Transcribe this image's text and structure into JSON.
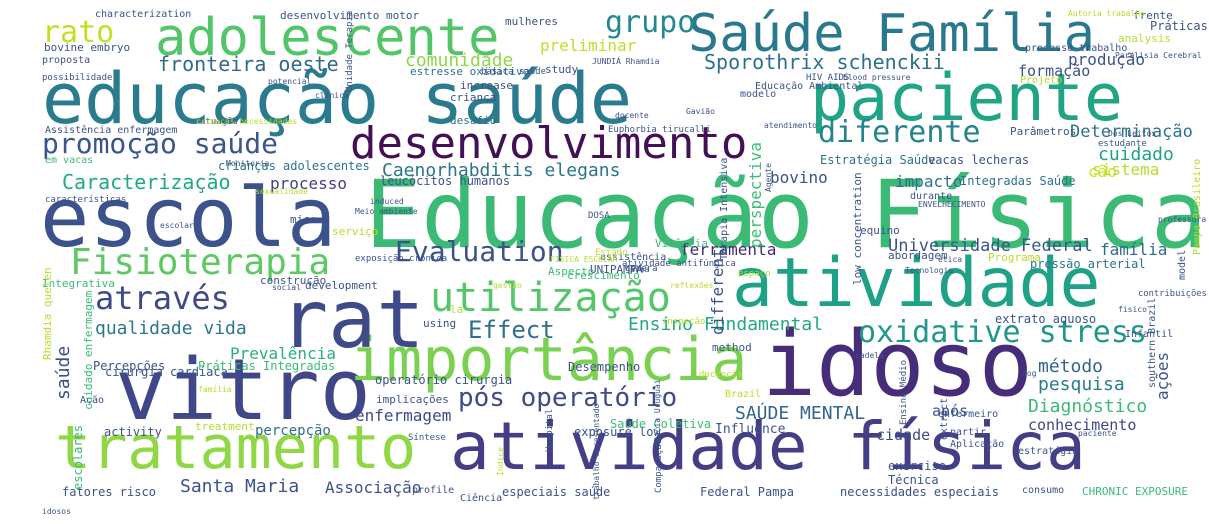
{
  "words": [
    {
      "text": "Educação Física",
      "color": "#3bba75"
    },
    {
      "text": "educação saúde",
      "color": "#2a7b8e"
    },
    {
      "text": "atividade física",
      "color": "#433e85"
    },
    {
      "text": "idoso",
      "color": "#472c7a"
    },
    {
      "text": "vitro",
      "color": "#404788"
    },
    {
      "text": "escola",
      "color": "#3b528b"
    },
    {
      "text": "tratamento",
      "color": "#8fd744"
    },
    {
      "text": "atividade",
      "color": "#1fa187"
    },
    {
      "text": "paciente",
      "color": "#20a486"
    },
    {
      "text": "importância",
      "color": "#7ad151"
    },
    {
      "text": "rat",
      "color": "#3e4a89"
    },
    {
      "text": "Saúde Família",
      "color": "#2a788e"
    },
    {
      "text": "adolescente",
      "color": "#52c569"
    },
    {
      "text": "desenvolvimento",
      "color": "#440f57"
    },
    {
      "text": "Fisioterapia",
      "color": "#5ec962"
    },
    {
      "text": "utilização",
      "color": "#54c568"
    },
    {
      "text": "através",
      "color": "#3e4989"
    },
    {
      "text": "oxidative stress",
      "color": "#1f988b"
    },
    {
      "text": "diferente",
      "color": "#26828e"
    },
    {
      "text": "promoção saúde",
      "color": "#3a548c"
    },
    {
      "text": "Evaluation",
      "color": "#3b528b"
    },
    {
      "text": "Effect",
      "color": "#2d708e"
    },
    {
      "text": "pós operatório",
      "color": "#3e4a89"
    },
    {
      "text": "qualidade vida",
      "color": "#2a788e"
    },
    {
      "text": "rato",
      "color": "#c2df23"
    },
    {
      "text": "grupo",
      "color": "#23898e"
    },
    {
      "text": "fronteira oeste",
      "color": "#31688e"
    },
    {
      "text": "Sporothrix schenckii",
      "color": "#2d708e"
    },
    {
      "text": "Caracterização",
      "color": "#22a884"
    },
    {
      "text": "Santa Maria",
      "color": "#3b528b"
    },
    {
      "text": "Ensino Fundamental",
      "color": "#22a884"
    },
    {
      "text": "método",
      "color": "#33638d"
    },
    {
      "text": "pesquisa",
      "color": "#287c8e"
    },
    {
      "text": "Diagnóstico",
      "color": "#3bbb75"
    },
    {
      "text": "SAÚDE MENTAL",
      "color": "#32648e"
    },
    {
      "text": "enfermagem",
      "color": "#3e4989"
    },
    {
      "text": "saúde",
      "color": "#3e4a89"
    },
    {
      "text": "cuidado",
      "color": "#20a386"
    },
    {
      "text": "Universidade Federal",
      "color": "#3a548c"
    },
    {
      "text": "família",
      "color": "#31688e"
    },
    {
      "text": "ferramenta",
      "color": "#482677"
    },
    {
      "text": "Prevalência",
      "color": "#29af7f"
    },
    {
      "text": "Determinação",
      "color": "#2c728e"
    },
    {
      "text": "comunidade",
      "color": "#8fd744"
    },
    {
      "text": "Caenorhabditis elegans",
      "color": "#2c738e"
    },
    {
      "text": "preliminar",
      "color": "#bddf26"
    },
    {
      "text": "processo",
      "color": "#433e85"
    },
    {
      "text": "conhecimento",
      "color": "#3f4788"
    },
    {
      "text": "cidade",
      "color": "#3e4989"
    },
    {
      "text": "após",
      "color": "#3b528b"
    },
    {
      "text": "percepção",
      "color": "#2f6c8e"
    },
    {
      "text": "Associação",
      "color": "#3b528b"
    },
    {
      "text": "impacto",
      "color": "#2c728e"
    },
    {
      "text": "bovino",
      "color": "#3b528b"
    },
    {
      "text": "cão",
      "color": "#d2e21b"
    },
    {
      "text": "sistema",
      "color": "#b5de2b"
    },
    {
      "text": "formação",
      "color": "#3b528b"
    },
    {
      "text": "produção",
      "color": "#3b528b"
    },
    {
      "text": "perspectiva",
      "color": "#3dbc74"
    },
    {
      "text": "different",
      "color": "#3b528b"
    },
    {
      "text": "ações",
      "color": "#3b528b"
    },
    {
      "text": "cirurgia cardíaca",
      "color": "#3b528b"
    },
    {
      "text": "operatório cirurgia",
      "color": "#3b528b"
    },
    {
      "text": "Percepções",
      "color": "#3b528b"
    },
    {
      "text": "Práticas Integradas",
      "color": "#3bbb75"
    },
    {
      "text": "implicações",
      "color": "#3b528b"
    },
    {
      "text": "Desempenho",
      "color": "#3b528b"
    },
    {
      "text": "activity",
      "color": "#3b528b"
    },
    {
      "text": "treatment",
      "color": "#b5de2b"
    },
    {
      "text": "exposure low",
      "color": "#3b528b"
    },
    {
      "text": "Influence",
      "color": "#3b528b"
    },
    {
      "text": "Saúde Coletiva",
      "color": "#3bbb75"
    },
    {
      "text": "fatores risco",
      "color": "#3b528b"
    },
    {
      "text": "especiais saúde",
      "color": "#3b528b"
    },
    {
      "text": "Federal Pampa",
      "color": "#3b528b"
    },
    {
      "text": "necessidades especiais",
      "color": "#3b528b"
    },
    {
      "text": "CHRONIC EXPOSURE",
      "color": "#3bbb75"
    },
    {
      "text": "exercise",
      "color": "#3b528b"
    },
    {
      "text": "Técnica",
      "color": "#3b528b"
    },
    {
      "text": "crianças adolescentes",
      "color": "#2c728e"
    },
    {
      "text": "leucócitos humanos",
      "color": "#3b528b"
    },
    {
      "text": "Estratégia Saúde",
      "color": "#2c728e"
    },
    {
      "text": "vacas lecheras",
      "color": "#3b528b"
    },
    {
      "text": "Integradas Saúde",
      "color": "#2c728e"
    },
    {
      "text": "pressão arterial",
      "color": "#2c728e"
    },
    {
      "text": "extrato aquoso",
      "color": "#3b528b"
    },
    {
      "text": "Práticas",
      "color": "#3b528b"
    },
    {
      "text": "analysis",
      "color": "#b5de2b"
    },
    {
      "text": "frente",
      "color": "#3b528b"
    },
    {
      "text": "characterization",
      "color": "#3b528b"
    },
    {
      "text": "desenvolvimento motor",
      "color": "#3b528b"
    },
    {
      "text": "mulheres",
      "color": "#3b528b"
    },
    {
      "text": "bovine embryo",
      "color": "#3b528b"
    },
    {
      "text": "study",
      "color": "#3b528b"
    },
    {
      "text": "estresse oxidativo",
      "color": "#2c728e"
    },
    {
      "text": "increase",
      "color": "#3b528b"
    },
    {
      "text": "criança",
      "color": "#3b528b"
    },
    {
      "text": "desafio",
      "color": "#2c728e"
    },
    {
      "text": "proposta",
      "color": "#3b528b"
    },
    {
      "text": "UNIPAMPA",
      "color": "#3b528b"
    },
    {
      "text": "Programa",
      "color": "#b5de2b"
    },
    {
      "text": "abordagem",
      "color": "#3b528b"
    },
    {
      "text": "Vivência",
      "color": "#3bbb75"
    },
    {
      "text": "Aspecto",
      "color": "#3bbb75"
    },
    {
      "text": "crescimento",
      "color": "#3bbb75"
    },
    {
      "text": "construção",
      "color": "#3b528b"
    },
    {
      "text": "development",
      "color": "#3b528b"
    },
    {
      "text": "Integrativa",
      "color": "#3bbb75"
    },
    {
      "text": "mice",
      "color": "#3b528b"
    },
    {
      "text": "serviço",
      "color": "#b5de2b"
    },
    {
      "text": "using",
      "color": "#3b528b"
    },
    {
      "text": "method",
      "color": "#3b528b"
    },
    {
      "text": "la",
      "color": "#b5de2b"
    },
    {
      "text": "equino",
      "color": "#3b528b"
    },
    {
      "text": "low concentration",
      "color": "#3b528b"
    },
    {
      "text": "Terapia Intensiva",
      "color": "#3b528b"
    },
    {
      "text": "estudante",
      "color": "#3b528b"
    },
    {
      "text": "Parâmetros",
      "color": "#3b528b"
    },
    {
      "text": "enfermeiro",
      "color": "#3b528b"
    },
    {
      "text": "partir",
      "color": "#3b528b"
    },
    {
      "text": "durante",
      "color": "#3b528b"
    },
    {
      "text": "modelo",
      "color": "#3b528b"
    },
    {
      "text": "Ação",
      "color": "#3b528b"
    },
    {
      "text": "escolares",
      "color": "#3bbb75"
    },
    {
      "text": "Rhamdia quelen",
      "color": "#b5de2b"
    },
    {
      "text": "cuidado enfermagem",
      "color": "#3bbb75"
    },
    {
      "text": "processo trabalho",
      "color": "#3b528b"
    },
    {
      "text": "model",
      "color": "#3b528b"
    },
    {
      "text": "Pampa Brasileiro",
      "color": "#b5de2b"
    },
    {
      "text": "Projeto",
      "color": "#b5de2b"
    },
    {
      "text": "contribuições",
      "color": "#3b528b"
    },
    {
      "text": "Infantil",
      "color": "#3b528b"
    },
    {
      "text": "Ciência",
      "color": "#3b528b"
    },
    {
      "text": "profile",
      "color": "#3b528b"
    },
    {
      "text": "consumo",
      "color": "#3b528b"
    },
    {
      "text": "Aplicação",
      "color": "#3b528b"
    },
    {
      "text": "estratégia",
      "color": "#3b528b"
    },
    {
      "text": "Índice",
      "color": "#b5de2b"
    },
    {
      "text": "Hospital",
      "color": "#3b528b"
    },
    {
      "text": "Comparação",
      "color": "#3b528b"
    },
    {
      "text": "Síntese",
      "color": "#3b528b"
    },
    {
      "text": "em vacas",
      "color": "#3bbb75"
    },
    {
      "text": "características",
      "color": "#3b528b"
    },
    {
      "text": "Assistência enfermagem",
      "color": "#3b528b"
    },
    {
      "text": "Educação Ambiental",
      "color": "#3b528b"
    },
    {
      "text": "atuação",
      "color": "#3b528b"
    },
    {
      "text": "Euphorbia tirucalli",
      "color": "#3b528b"
    },
    {
      "text": "assistência",
      "color": "#3b528b"
    },
    {
      "text": "Estado",
      "color": "#b5de2b"
    },
    {
      "text": "atividade antifúngica",
      "color": "#3b528b"
    },
    {
      "text": "espaço",
      "color": "#b5de2b"
    },
    {
      "text": "gestão",
      "color": "#b5de2b"
    },
    {
      "text": "Brazil",
      "color": "#b5de2b"
    },
    {
      "text": "cadela",
      "color": "#3b528b"
    },
    {
      "text": "dog",
      "color": "#3b528b"
    },
    {
      "text": "southern Brazil",
      "color": "#3b528b"
    },
    {
      "text": "Ensino Médio",
      "color": "#3b528b"
    },
    {
      "text": "extract",
      "color": "#3b528b"
    },
    {
      "text": "básica saúde",
      "color": "#3b528b"
    },
    {
      "text": "Autoria trabalho",
      "color": "#b5de2b"
    },
    {
      "text": "JUNDIÁ Rhamdia",
      "color": "#3b528b"
    },
    {
      "text": "Unidade Terapia",
      "color": "#3b528b"
    },
    {
      "text": "possibilidade",
      "color": "#3b528b"
    },
    {
      "text": "potencial",
      "color": "#3b528b"
    },
    {
      "text": "HIV AIDS",
      "color": "#3b528b"
    },
    {
      "text": "blood pressure",
      "color": "#3b528b"
    },
    {
      "text": "atendimento",
      "color": "#3b528b"
    },
    {
      "text": "Monitoria",
      "color": "#3b528b"
    },
    {
      "text": "crianças necessidades",
      "color": "#b5de2b"
    },
    {
      "text": "clínica",
      "color": "#3b528b"
    },
    {
      "text": "sexualidade",
      "color": "#b5de2b"
    },
    {
      "text": "Meio ambiente",
      "color": "#3b528b"
    },
    {
      "text": "induced",
      "color": "#3b528b"
    },
    {
      "text": "escolar",
      "color": "#3b528b"
    },
    {
      "text": "professora",
      "color": "#3b528b"
    },
    {
      "text": "ENVELHECIMENTO",
      "color": "#3b528b"
    },
    {
      "text": "paciente",
      "color": "#3b528b"
    },
    {
      "text": "área",
      "color": "#3b528b"
    },
    {
      "text": "social",
      "color": "#3b528b"
    },
    {
      "text": "idosos",
      "color": "#3b528b"
    },
    {
      "text": "trabalho apresentado",
      "color": "#3b528b"
    },
    {
      "text": "Bacia Uruguai",
      "color": "#3b528b"
    },
    {
      "text": "FISICA ESCOLAR",
      "color": "#b5de2b"
    },
    {
      "text": "exposição crônica",
      "color": "#3b528b"
    },
    {
      "text": "Tecnologia",
      "color": "#3b528b"
    },
    {
      "text": "docente",
      "color": "#3b528b"
    },
    {
      "text": "Gavião",
      "color": "#3b528b"
    },
    {
      "text": "reflexões",
      "color": "#b5de2b"
    },
    {
      "text": "Agente",
      "color": "#3b528b"
    },
    {
      "text": "ética",
      "color": "#3b528b"
    },
    {
      "text": "família",
      "color": "#b5de2b"
    },
    {
      "text": "fisico",
      "color": "#3b528b"
    },
    {
      "text": "Paralisia Cerebral",
      "color": "#3b528b"
    },
    {
      "text": "Dos Leitos",
      "color": "#3b528b"
    },
    {
      "text": "DOSA",
      "color": "#3b528b"
    },
    {
      "text": "genera",
      "color": "#3b528b"
    },
    {
      "text": "inspeção",
      "color": "#b5de2b"
    },
    {
      "text": "docência",
      "color": "#b5de2b"
    }
  ]
}
